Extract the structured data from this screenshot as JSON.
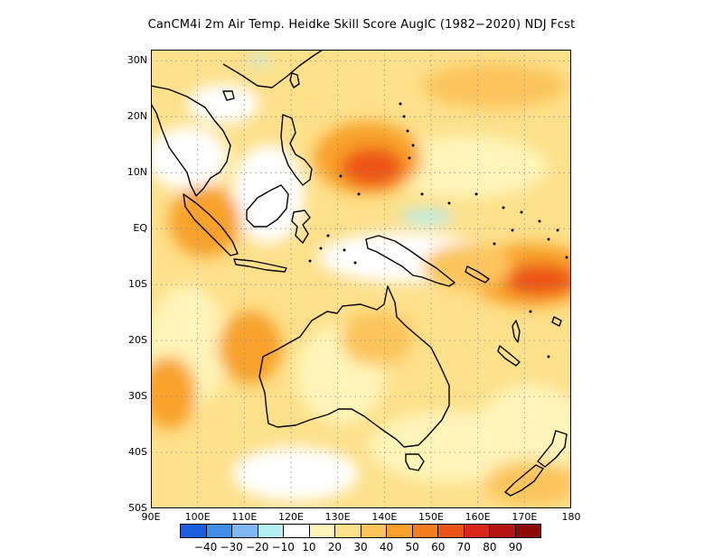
{
  "title": "CanCM4i  2m Air Temp. Heidke Skill Score AugIC (1982−2020) NDJ Fcst",
  "axes": {
    "lon_ticks": [
      "90E",
      "100E",
      "110E",
      "120E",
      "130E",
      "140E",
      "150E",
      "160E",
      "170E",
      "180"
    ],
    "lat_ticks": [
      "30N",
      "20N",
      "10N",
      "EQ",
      "10S",
      "20S",
      "30S",
      "40S",
      "50S"
    ]
  },
  "colorbar": {
    "colors": [
      "#1a5ee0",
      "#3f8fea",
      "#7fb8f0",
      "#b4eef2",
      "#ffffff",
      "#fff4b8",
      "#fde08a",
      "#fcc55c",
      "#f8a22c",
      "#f27c1e",
      "#ec5418",
      "#d9281a",
      "#b61414",
      "#8c0a0a"
    ],
    "labels": [
      "−40",
      "−30",
      "−20",
      "−10",
      "10",
      "20",
      "30",
      "40",
      "50",
      "60",
      "70",
      "80",
      "90"
    ]
  },
  "chart_data": {
    "type": "heatmap",
    "title": "CanCM4i  2m Air Temp. Heidke Skill Score AugIC (1982−2020) NDJ Fcst",
    "xlim": [
      90,
      180
    ],
    "ylim": [
      -50,
      32
    ],
    "x_ticks": [
      90,
      100,
      110,
      120,
      130,
      140,
      150,
      160,
      170,
      180
    ],
    "y_ticks": [
      30,
      20,
      10,
      0,
      -10,
      -20,
      -30,
      -40,
      -50
    ],
    "levels": [
      -40,
      -30,
      -20,
      -10,
      10,
      20,
      30,
      40,
      50,
      60,
      70,
      80,
      90
    ],
    "grid": true
  }
}
